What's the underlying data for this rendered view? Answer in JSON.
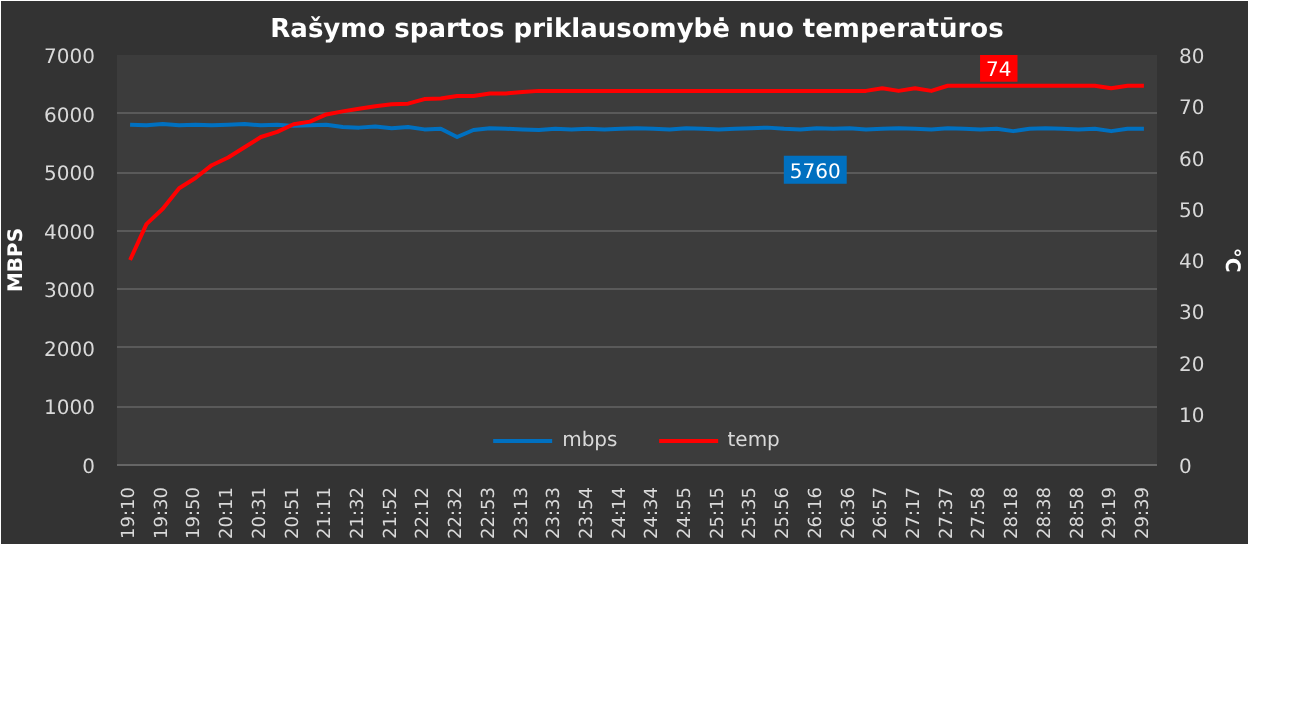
{
  "chart_data": {
    "type": "line",
    "title": "Rašymo spartos priklausomybė nuo temperatūros",
    "categories": [
      "19:10",
      null,
      "19:30",
      null,
      "19:50",
      null,
      "20:11",
      null,
      "20:31",
      null,
      "20:51",
      null,
      "21:11",
      null,
      "21:32",
      null,
      "21:52",
      null,
      "22:12",
      null,
      "22:32",
      null,
      "22:53",
      null,
      "23:13",
      null,
      "23:33",
      null,
      "23:54",
      null,
      "24:14",
      null,
      "24:34",
      null,
      "24:55",
      null,
      "25:15",
      null,
      "25:35",
      null,
      "25:56",
      null,
      "26:16",
      null,
      "26:36",
      null,
      "26:57",
      null,
      "27:17",
      null,
      "27:37",
      null,
      "27:58",
      null,
      "28:18",
      null,
      "28:38",
      null,
      "28:58",
      null,
      "29:19",
      null,
      "29:39"
    ],
    "ylabel": "MBPS",
    "y2label": "°C",
    "ylim": [
      0,
      7000
    ],
    "yticks": [
      0,
      1000,
      2000,
      3000,
      4000,
      5000,
      6000,
      7000
    ],
    "y2lim": [
      0,
      80
    ],
    "y2ticks": [
      0,
      10,
      20,
      30,
      40,
      50,
      60,
      70,
      80
    ],
    "grid": "y",
    "legend": "bottom",
    "series": [
      {
        "name": "mbps",
        "color": "#0070c0",
        "values": [
          5810,
          5800,
          5820,
          5800,
          5810,
          5800,
          5810,
          5820,
          5800,
          5810,
          5790,
          5800,
          5810,
          5770,
          5760,
          5780,
          5750,
          5770,
          5730,
          5740,
          5600,
          5720,
          5750,
          5740,
          5730,
          5720,
          5740,
          5730,
          5740,
          5730,
          5740,
          5750,
          5740,
          5730,
          5750,
          5740,
          5730,
          5740,
          5750,
          5760,
          5740,
          5730,
          5750,
          5740,
          5750,
          5730,
          5740,
          5750,
          5740,
          5730,
          5750,
          5740,
          5730,
          5740,
          5700,
          5740,
          5750,
          5740,
          5730,
          5740,
          5700,
          5740,
          5740
        ],
        "value_labels": [
          null,
          null,
          null,
          null,
          null,
          null,
          null,
          null,
          null,
          null,
          null,
          null,
          null,
          null,
          null,
          null,
          null,
          null,
          null,
          null,
          null,
          null,
          null,
          null,
          null,
          null,
          null,
          null,
          null,
          null,
          null,
          null,
          null,
          null,
          null,
          null,
          null,
          null,
          null,
          "5760",
          null,
          null,
          null,
          null,
          null,
          null,
          null,
          null,
          null,
          null,
          null,
          null,
          null,
          null,
          null,
          null,
          null,
          null,
          null,
          null,
          null,
          null,
          null
        ]
      },
      {
        "name": "temp",
        "color": "#ff0000",
        "axis": "y2",
        "values": [
          40,
          47,
          50,
          54,
          56,
          58.5,
          60,
          62,
          64,
          65,
          66.5,
          67,
          68.4,
          69,
          69.5,
          70,
          70.4,
          70.5,
          71.4,
          71.5,
          72,
          72,
          72.5,
          72.5,
          72.8,
          73,
          73,
          73,
          73,
          73,
          73,
          73,
          73,
          73,
          73,
          73,
          73,
          73,
          73,
          73,
          73,
          73,
          73,
          73,
          73,
          73,
          73.5,
          73,
          73.5,
          73,
          74,
          74,
          74,
          74,
          74,
          74,
          74,
          74,
          74,
          74,
          73.5,
          74,
          74
        ],
        "value_labels": [
          null,
          null,
          null,
          null,
          null,
          null,
          null,
          null,
          null,
          null,
          null,
          null,
          null,
          null,
          null,
          null,
          null,
          null,
          null,
          null,
          null,
          null,
          null,
          null,
          null,
          null,
          null,
          null,
          null,
          null,
          null,
          null,
          null,
          null,
          null,
          null,
          null,
          null,
          null,
          null,
          null,
          null,
          null,
          null,
          null,
          null,
          null,
          null,
          null,
          null,
          null,
          "74",
          null,
          null,
          null,
          null,
          null,
          null,
          null,
          null,
          null,
          null,
          null
        ]
      }
    ]
  }
}
